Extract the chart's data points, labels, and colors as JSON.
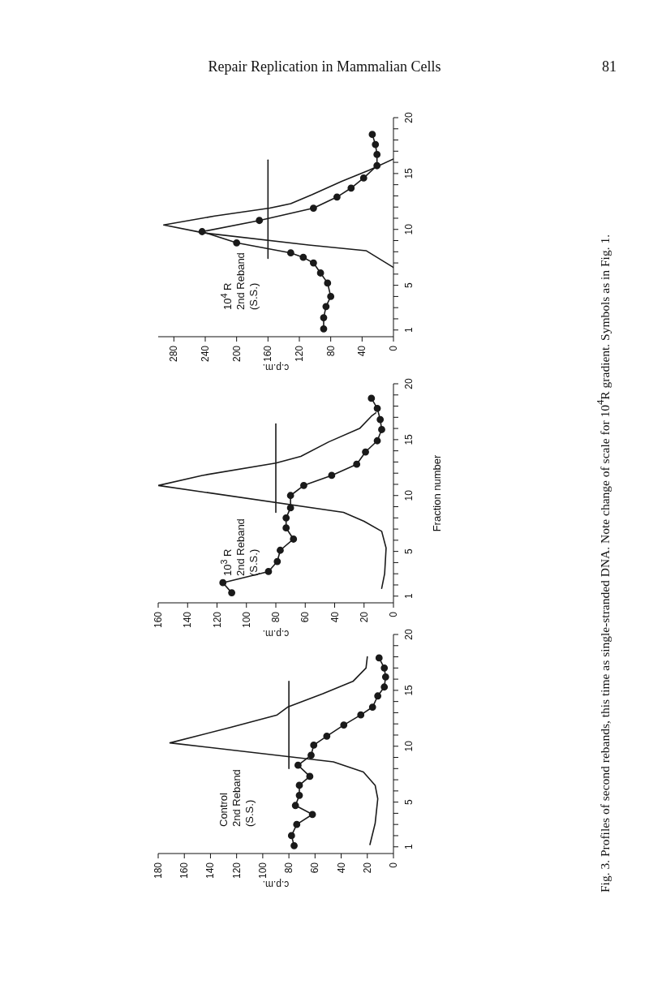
{
  "chart_data": [
    {
      "type": "line",
      "title": "Control\n2nd Reband\n(S.S.)",
      "xlabel": "c.p.m.",
      "marker": "circle",
      "ylim": [
        0.4,
        20
      ],
      "yticks": [
        1,
        {
          "value": 2,
          "label": null
        },
        {
          "value": 3,
          "label": null
        },
        {
          "value": 4,
          "label": null
        },
        5,
        {
          "value": 6,
          "label": null
        },
        {
          "value": 7,
          "label": null
        },
        {
          "value": 8,
          "label": null
        },
        {
          "value": 9,
          "label": null
        },
        10,
        {
          "value": 11,
          "label": null
        },
        {
          "value": 12,
          "label": null
        },
        {
          "value": 13,
          "label": null
        },
        {
          "value": 14,
          "label": null
        },
        15,
        {
          "value": 16,
          "label": null
        },
        {
          "value": 17,
          "label": null
        },
        {
          "value": 18,
          "label": null
        },
        {
          "value": 19,
          "label": null
        },
        20
      ],
      "xlim": [
        180,
        0
      ],
      "xticks": [
        180,
        160,
        140,
        120,
        100,
        80,
        60,
        40,
        20,
        0
      ],
      "series": [
        {
          "color": "#1a1a1a",
          "values": [
            1.1,
            2.0,
            3.0,
            3.9,
            4.7,
            5.6,
            6.5,
            7.3,
            8.3,
            9.2,
            10.1,
            10.9,
            11.9,
            12.8,
            13.5,
            14.5,
            15.3,
            16.2,
            17.0,
            17.9
          ],
          "x": [
            76,
            78,
            74,
            62,
            75,
            72,
            72,
            64,
            73,
            63,
            61,
            51,
            38,
            25,
            16,
            12,
            7,
            6,
            7,
            11
          ]
        },
        {
          "color": "#1a1a1a",
          "marker": "none",
          "values": [
            1.2,
            3.1,
            5.3,
            6.5,
            7.7,
            8.6,
            10.3,
            11.7,
            12.8,
            13.5,
            14.7,
            15.8,
            17.0,
            18.0
          ],
          "x": [
            18,
            14,
            12,
            14,
            23,
            46,
            171,
            124,
            89,
            81,
            54,
            31,
            21,
            20
          ]
        },
        {
          "color": "#1a1a1a",
          "marker": "none",
          "x": [
            80,
            80
          ],
          "values": [
            8.0,
            15.8
          ],
          "errors": [
            0,
            0
          ]
        }
      ],
      "annotations": [
        "Repair Replication in Mammalian Cells",
        "81",
        "Fig. 3. Profiles of second rebands, this time as single-stranded DNA. Note change of scale for 10$^{4}$R gradient. Symbols as in Fig. 1."
      ]
    },
    {
      "type": "line",
      "title": "10$^{3}$ R\n2nd Reband\n(S.S.)",
      "xlabel": "c.p.m.",
      "ylabel": "Fraction number",
      "marker": "circle",
      "ylim": [
        0.4,
        20
      ],
      "yticks": [
        1,
        {
          "value": 2,
          "label": null
        },
        {
          "value": 3,
          "label": null
        },
        {
          "value": 4,
          "label": null
        },
        5,
        {
          "value": 6,
          "label": null
        },
        {
          "value": 7,
          "label": null
        },
        {
          "value": 8,
          "label": null
        },
        {
          "value": 9,
          "label": null
        },
        10,
        {
          "value": 11,
          "label": null
        },
        {
          "value": 12,
          "label": null
        },
        {
          "value": 13,
          "label": null
        },
        {
          "value": 14,
          "label": null
        },
        15,
        {
          "value": 16,
          "label": null
        },
        {
          "value": 17,
          "label": null
        },
        {
          "value": 18,
          "label": null
        },
        {
          "value": 19,
          "label": null
        },
        20
      ],
      "xlim": [
        160,
        0
      ],
      "xticks": [
        160,
        140,
        120,
        100,
        80,
        60,
        40,
        20,
        0
      ],
      "series": [
        {
          "color": "#1a1a1a",
          "values": [
            1.3,
            2.2,
            3.2,
            4.1,
            5.1,
            6.1,
            7.1,
            8.0,
            8.9,
            10.0,
            10.9,
            11.8,
            12.8,
            13.9,
            14.9,
            15.9,
            16.8,
            17.8,
            18.7
          ],
          "x": [
            110,
            116,
            85,
            79,
            77,
            68,
            73,
            73,
            70,
            70,
            61,
            42,
            25,
            19,
            11,
            8,
            9,
            11,
            15
          ]
        },
        {
          "color": "#1a1a1a",
          "marker": "none",
          "values": [
            1.7,
            3.0,
            5.3,
            6.8,
            7.7,
            8.5,
            10.9,
            11.8,
            12.9,
            13.5,
            14.8,
            16.0,
            17.1,
            17.4
          ],
          "x": [
            8,
            6,
            5,
            8,
            20,
            34,
            160,
            130,
            80,
            63,
            44,
            23,
            15,
            12
          ]
        },
        {
          "color": "#1a1a1a",
          "marker": "none",
          "x": [
            80,
            80
          ],
          "values": [
            8.5,
            16.4
          ],
          "errors": [
            0,
            0
          ]
        }
      ]
    },
    {
      "type": "line",
      "title": "10$^{4}$ R\n2nd Reband\n(S.S.)",
      "xlabel": "c.p.m.",
      "marker": "circle",
      "ylim": [
        0.4,
        20
      ],
      "yticks": [
        1,
        {
          "value": 2,
          "label": null
        },
        {
          "value": 3,
          "label": null
        },
        {
          "value": 4,
          "label": null
        },
        5,
        {
          "value": 6,
          "label": null
        },
        {
          "value": 7,
          "label": null
        },
        {
          "value": 8,
          "label": null
        },
        {
          "value": 9,
          "label": null
        },
        10,
        {
          "value": 11,
          "label": null
        },
        {
          "value": 12,
          "label": null
        },
        {
          "value": 13,
          "label": null
        },
        {
          "value": 14,
          "label": null
        },
        15,
        {
          "value": 16,
          "label": null
        },
        {
          "value": 17,
          "label": null
        },
        {
          "value": 18,
          "label": null
        },
        {
          "value": 19,
          "label": null
        },
        20
      ],
      "xlim": [
        300,
        0
      ],
      "xticks": [
        280,
        240,
        200,
        160,
        120,
        80,
        40,
        0
      ],
      "series": [
        {
          "color": "#1a1a1a",
          "values": [
            1.1,
            2.1,
            3.1,
            4.0,
            5.2,
            6.1,
            7.0,
            7.5,
            7.9,
            8.8,
            9.8,
            10.8,
            11.9,
            12.9,
            13.7,
            14.6,
            15.7,
            16.7,
            17.6,
            18.5
          ],
          "x": [
            89,
            89,
            86,
            80,
            84,
            93,
            102,
            115,
            131,
            200,
            244,
            171,
            102,
            72,
            54,
            38,
            21,
            21,
            23,
            27
          ]
        },
        {
          "color": "#1a1a1a",
          "marker": "none",
          "values": [
            6.6,
            8.1,
            8.6,
            9.7,
            10.4,
            11.2,
            11.9,
            12.3,
            13.1,
            14.3,
            15.3,
            16.3
          ],
          "x": [
            0,
            35,
            108,
            243,
            293,
            228,
            158,
            131,
            104,
            66,
            31,
            0
          ]
        },
        {
          "color": "#1a1a1a",
          "marker": "none",
          "x": [
            160,
            160
          ],
          "values": [
            7.4,
            16.2
          ],
          "errors": [
            0,
            0
          ]
        }
      ]
    }
  ]
}
